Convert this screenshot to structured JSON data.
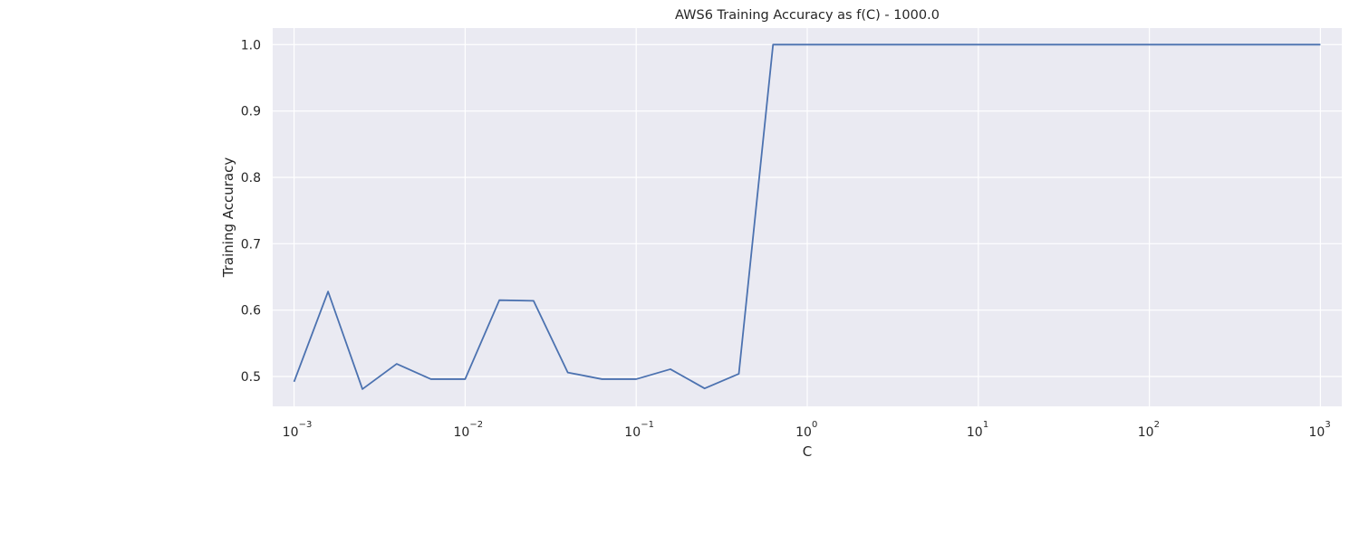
{
  "chart_data": {
    "type": "line",
    "title": "AWS6 Training Accuracy as f(C) - 1000.0",
    "xlabel": "C",
    "ylabel": "Training Accuracy",
    "xscale": "log",
    "xlim": [
      0.00075,
      1333
    ],
    "ylim": [
      0.455,
      1.025
    ],
    "grid": true,
    "background": "#eaeaf2",
    "grid_color": "#ffffff",
    "line_color": "#4c72b0",
    "x_ticks": [
      {
        "base": "10",
        "exp": "−3",
        "value": 0.001
      },
      {
        "base": "10",
        "exp": "−2",
        "value": 0.01
      },
      {
        "base": "10",
        "exp": "−1",
        "value": 0.1
      },
      {
        "base": "10",
        "exp": "0",
        "value": 1
      },
      {
        "base": "10",
        "exp": "1",
        "value": 10
      },
      {
        "base": "10",
        "exp": "2",
        "value": 100
      },
      {
        "base": "10",
        "exp": "3",
        "value": 1000
      }
    ],
    "y_ticks": [
      "0.5",
      "0.6",
      "0.7",
      "0.8",
      "0.9",
      "1.0"
    ],
    "series": [
      {
        "x": [
          0.001,
          0.00158,
          0.00251,
          0.00398,
          0.00631,
          0.01,
          0.01585,
          0.02512,
          0.03981,
          0.0631,
          0.1,
          0.1585,
          0.2512,
          0.3981,
          0.631,
          1,
          1.585,
          2.512,
          3.981,
          6.31,
          10,
          15.85,
          25.12,
          39.81,
          63.1,
          100,
          158.5,
          251.2,
          398.1,
          631,
          1000
        ],
        "y": [
          0.492,
          0.628,
          0.481,
          0.519,
          0.496,
          0.496,
          0.615,
          0.614,
          0.506,
          0.496,
          0.496,
          0.511,
          0.482,
          0.504,
          1.0,
          1.0,
          1.0,
          1.0,
          1.0,
          1.0,
          1.0,
          1.0,
          1.0,
          1.0,
          1.0,
          1.0,
          1.0,
          1.0,
          1.0,
          1.0,
          1.0
        ]
      }
    ]
  }
}
